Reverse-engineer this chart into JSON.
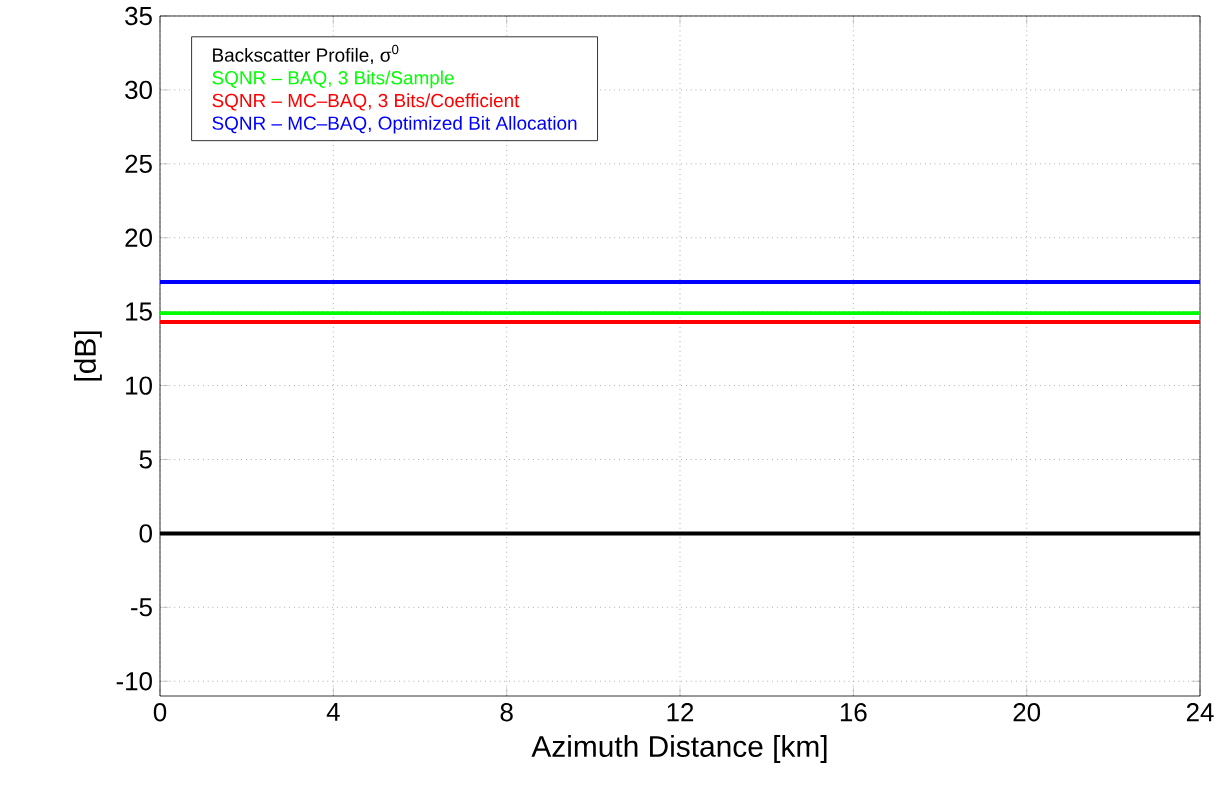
{
  "chart_data": {
    "type": "line",
    "xlabel": "Azimuth Distance [km]",
    "ylabel": "[dB]",
    "x": [
      0,
      24
    ],
    "series": [
      {
        "name": "Backscatter Profile, σ$^{0}$",
        "color": "#000000",
        "values": [
          0,
          0
        ]
      },
      {
        "name": "SQNR – BAQ, 3 Bits/Sample",
        "color": "#00ff00",
        "values": [
          14.9,
          14.9
        ]
      },
      {
        "name": "SQNR – MC–BAQ, 3 Bits/Coefficient",
        "color": "#ff0000",
        "values": [
          14.3,
          14.3
        ]
      },
      {
        "name": "SQNR – MC–BAQ, Optimized Bit Allocation",
        "color": "#0000ff",
        "values": [
          17,
          17
        ]
      }
    ],
    "xlim": [
      0,
      24
    ],
    "xticks": [
      0,
      4,
      8,
      12,
      16,
      20,
      24
    ],
    "ylim": [
      -11,
      35
    ],
    "yticks": [
      -10,
      -5,
      0,
      5,
      10,
      15,
      20,
      25,
      30,
      35
    ],
    "grid": true,
    "legend": "top left",
    "marker": "none",
    "line_style": "solid"
  }
}
